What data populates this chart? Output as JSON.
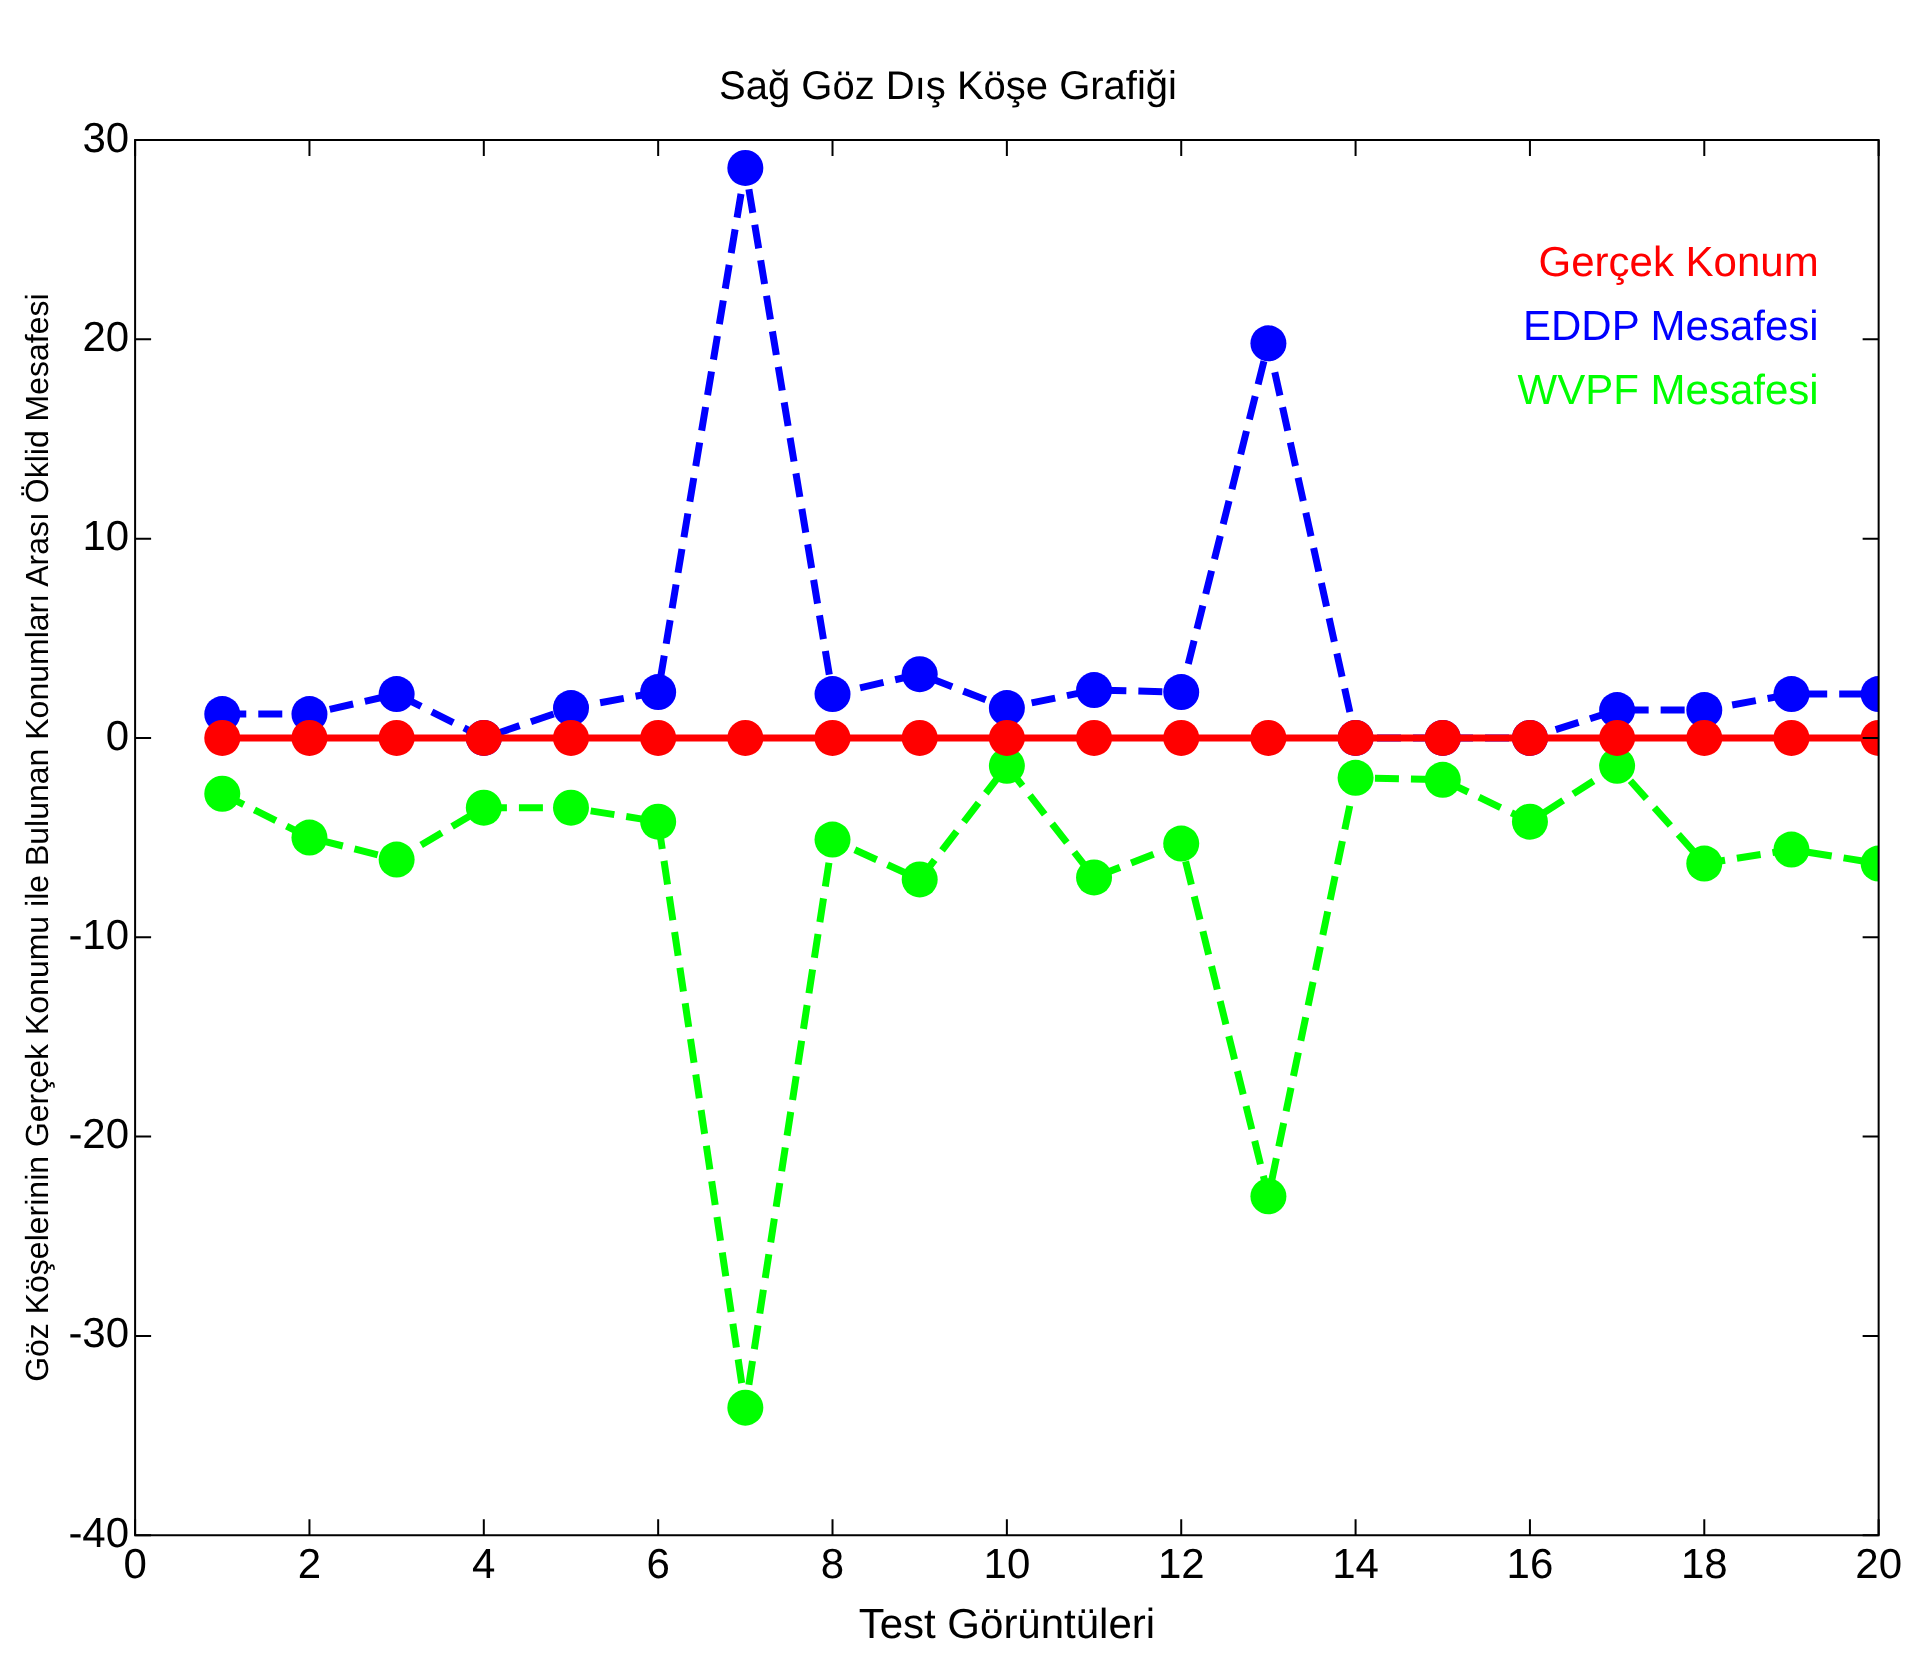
{
  "chart_data": {
    "type": "line",
    "title": "Sağ Göz Dış Köşe Grafiği",
    "xlabel": "Test Görüntüleri",
    "ylabel": "Göz Köşelerinin Gerçek Konumu ile Bulunan Konumları Arası Öklid Mesafesi",
    "x": [
      1,
      2,
      3,
      4,
      5,
      6,
      7,
      8,
      9,
      10,
      11,
      12,
      13,
      14,
      15,
      16,
      17,
      18,
      19,
      20
    ],
    "series": [
      {
        "name": "Gerçek Konum",
        "color": "#ff0000",
        "line_style": "solid",
        "values": [
          0,
          0,
          0,
          0,
          0,
          0,
          0,
          0,
          0,
          0,
          0,
          0,
          0,
          0,
          0,
          0,
          0,
          0,
          0,
          0
        ]
      },
      {
        "name": "EDDP Mesafesi",
        "color": "#0000ff",
        "line_style": "dashed",
        "values": [
          1.2,
          1.2,
          2.2,
          0,
          1.5,
          2.3,
          28.6,
          2.2,
          3.2,
          1.5,
          2.4,
          2.3,
          19.8,
          0,
          0,
          0,
          1.4,
          1.4,
          2.2,
          2.2
        ]
      },
      {
        "name": "WVPF Mesafesi",
        "color": "#00ff00",
        "line_style": "dashed",
        "values": [
          -2.8,
          -5.0,
          -6.1,
          -3.5,
          -3.5,
          -4.2,
          -33.6,
          -5.1,
          -7.1,
          -1.4,
          -7.0,
          -5.3,
          -23.0,
          -2.0,
          -2.1,
          -4.2,
          -1.4,
          -6.3,
          -5.6,
          -6.3
        ]
      }
    ],
    "xlim": [
      0,
      20
    ],
    "xticks": [
      0,
      2,
      4,
      6,
      8,
      10,
      12,
      14,
      16,
      18,
      20
    ],
    "ylim": [
      -40,
      30
    ],
    "yticks": [
      -40,
      -30,
      -20,
      -10,
      0,
      10,
      20,
      30
    ],
    "grid": false,
    "legend": "top right",
    "marker": "circle"
  }
}
